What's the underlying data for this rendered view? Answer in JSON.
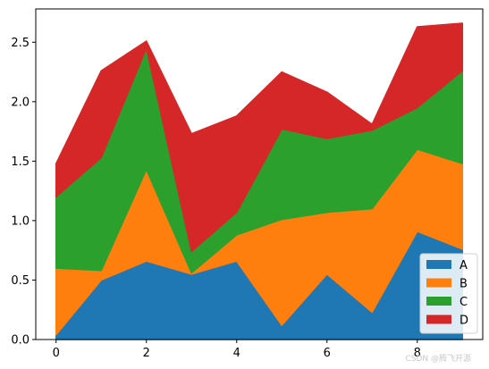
{
  "chart_data": {
    "type": "area",
    "stacked": true,
    "x": [
      0,
      1,
      2,
      3,
      4,
      5,
      6,
      7,
      8,
      9
    ],
    "xlim": [
      -0.45,
      9.45
    ],
    "ylim": [
      0,
      2.78
    ],
    "xticks": [
      0,
      2,
      4,
      6,
      8
    ],
    "yticks": [
      0.0,
      0.5,
      1.0,
      1.5,
      2.0,
      2.5
    ],
    "xtick_labels": [
      "0",
      "2",
      "4",
      "6",
      "8"
    ],
    "ytick_labels": [
      "0.0",
      "0.5",
      "1.0",
      "1.5",
      "2.0",
      "2.5"
    ],
    "grid": false,
    "legend_position": "lower-right",
    "series": [
      {
        "name": "A",
        "color": "#1f77b4",
        "values": [
          0.04,
          0.5,
          0.66,
          0.55,
          0.66,
          0.12,
          0.55,
          0.23,
          0.91,
          0.76
        ]
      },
      {
        "name": "B",
        "color": "#ff7f0e",
        "values": [
          0.56,
          0.08,
          0.77,
          0.01,
          0.22,
          0.89,
          0.52,
          0.87,
          0.69,
          0.72
        ]
      },
      {
        "name": "C",
        "color": "#2ca02c",
        "values": [
          0.6,
          0.95,
          1.02,
          0.18,
          0.19,
          0.76,
          0.62,
          0.66,
          0.35,
          0.78
        ]
      },
      {
        "name": "D",
        "color": "#d62728",
        "values": [
          0.28,
          0.73,
          0.06,
          0.99,
          0.81,
          0.48,
          0.39,
          0.05,
          0.68,
          0.4
        ]
      }
    ]
  },
  "watermark": "CSDN @腾飞开源"
}
